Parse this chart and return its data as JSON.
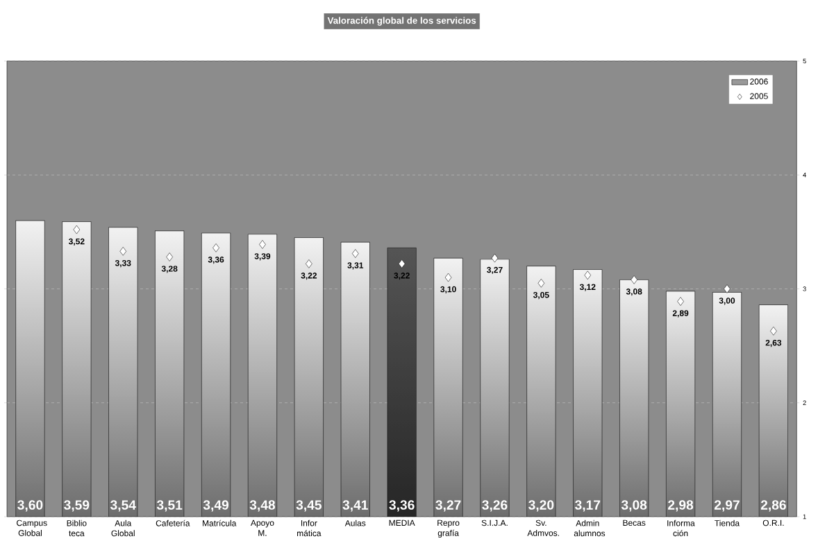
{
  "chart_data": {
    "type": "bar",
    "title": "Valoración global de los servicios",
    "categories": [
      "Campus Global",
      "Biblio teca",
      "Aula Global",
      "Cafetería",
      "Matrícula",
      "Apoyo M.",
      "Infor mática",
      "Aulas",
      "MEDIA",
      "Repro grafía",
      "S.I.J.A.",
      "Sv. Admvos.",
      "Admin alumnos",
      "Becas",
      "Informa ción",
      "Tienda",
      "O.R.I."
    ],
    "series": [
      {
        "name": "2006",
        "type": "bar",
        "colors": [
          "#f2f2f2",
          "#f2f2f2",
          "#f2f2f2",
          "#f2f2f2",
          "#f2f2f2",
          "#f2f2f2",
          "#f2f2f2",
          "#f2f2f2",
          "#555555",
          "#f2f2f2",
          "#f2f2f2",
          "#f2f2f2",
          "#f2f2f2",
          "#f2f2f2",
          "#f2f2f2",
          "#f2f2f2",
          "#f2f2f2"
        ],
        "values": [
          3.6,
          3.59,
          3.54,
          3.51,
          3.49,
          3.48,
          3.45,
          3.41,
          3.36,
          3.27,
          3.26,
          3.2,
          3.17,
          3.08,
          2.98,
          2.97,
          2.86
        ],
        "value_labels": [
          "3,60",
          "3,59",
          "3,54",
          "3,51",
          "3,49",
          "3,48",
          "3,45",
          "3,41",
          "3,36",
          "3,27",
          "3,26",
          "3,20",
          "3,17",
          "3,08",
          "2,98",
          "2,97",
          "2,86"
        ]
      },
      {
        "name": "2005",
        "type": "scatter",
        "marker": "diamond",
        "color": "#ffffff",
        "values": [
          null,
          3.52,
          3.33,
          3.28,
          3.36,
          3.39,
          3.22,
          3.31,
          3.22,
          3.1,
          3.27,
          3.05,
          3.12,
          3.08,
          2.89,
          3.0,
          2.63
        ],
        "value_labels": [
          null,
          "3,52",
          "3,33",
          "3,28",
          "3,36",
          "3,39",
          "3,22",
          "3,31",
          "3,22",
          "3,10",
          "3,27",
          "3,05",
          "3,12",
          "3,08",
          "2,89",
          "3,00",
          "2,63"
        ]
      }
    ],
    "ylim": [
      1,
      5
    ],
    "yticks": [
      1,
      2,
      3,
      4,
      5
    ],
    "grid": "y",
    "legend": "top right"
  }
}
